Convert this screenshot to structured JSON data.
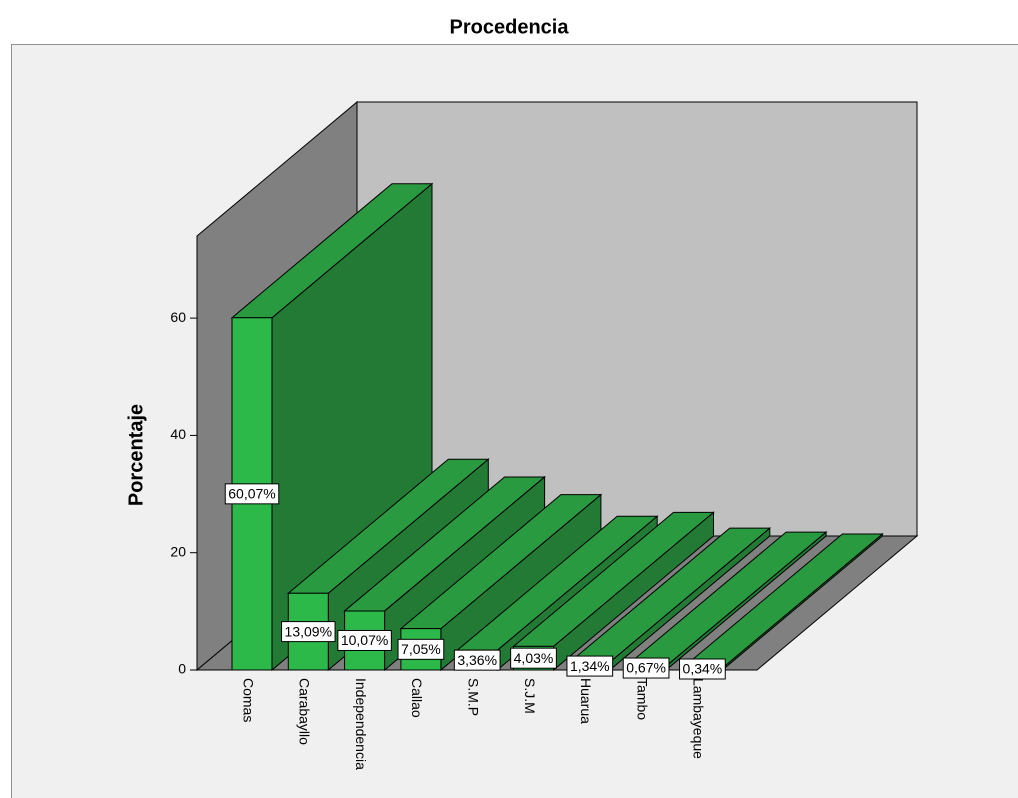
{
  "chart_data": {
    "type": "bar3d",
    "title": "Procedencia",
    "ylabel": "Porcentaje",
    "categories": [
      "Comas",
      "Carabayllo",
      "Independencia",
      "Callao",
      "S.M.P",
      "S.J.M",
      "Huarua",
      "Tambo",
      "Lambayeque"
    ],
    "values": [
      60.07,
      13.09,
      10.07,
      7.05,
      3.36,
      4.03,
      1.34,
      0.67,
      0.34
    ],
    "value_labels": [
      "60,07%",
      "13,09%",
      "10,07%",
      "7,05%",
      "3,36%",
      "4,03%",
      "1,34%",
      "0,67%",
      "0,34%"
    ],
    "color": "#2db84a",
    "ylim": [
      0,
      74
    ],
    "yticks": [
      0,
      20,
      40,
      60
    ]
  }
}
